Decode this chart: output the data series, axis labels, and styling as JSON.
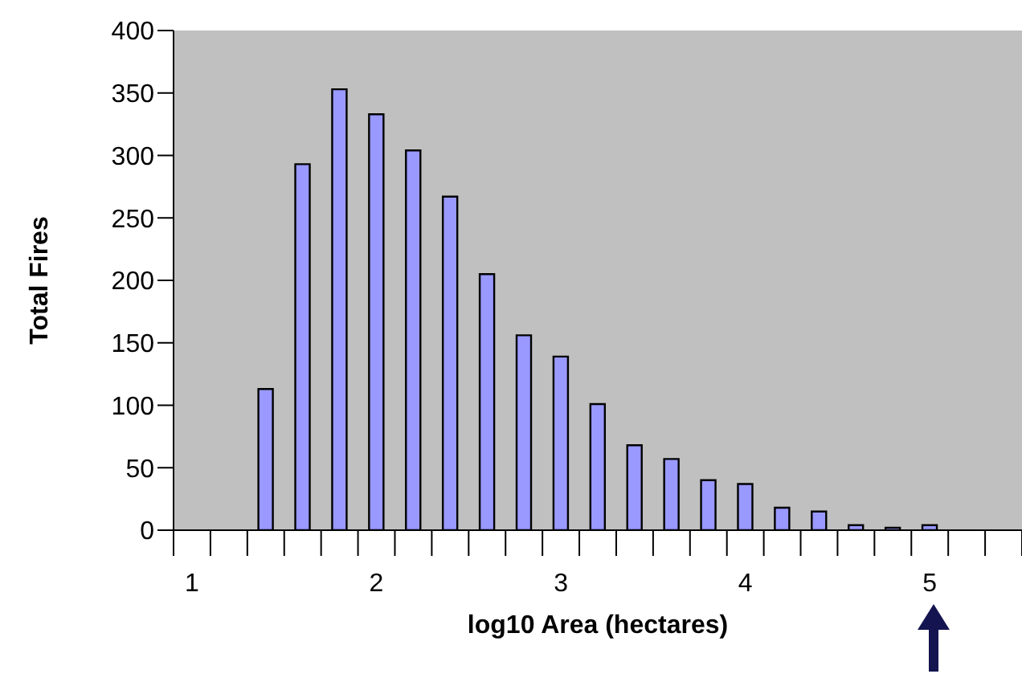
{
  "chart_data": {
    "type": "bar",
    "xlabel": "log10 Area (hectares)",
    "ylabel": "Total Fires",
    "categories": [
      "1",
      null,
      null,
      null,
      null,
      "2",
      null,
      null,
      null,
      null,
      "3",
      null,
      null,
      null,
      null,
      "4",
      null,
      null,
      null,
      null,
      "5",
      null,
      null
    ],
    "values": [
      null,
      null,
      113,
      293,
      353,
      333,
      304,
      267,
      205,
      156,
      139,
      101,
      68,
      57,
      40,
      37,
      18,
      15,
      4,
      2,
      4,
      null,
      null
    ],
    "color": "#9999ff",
    "ylim": [
      0,
      400
    ],
    "yticks": [
      0,
      50,
      100,
      150,
      200,
      250,
      300,
      350,
      400
    ]
  }
}
